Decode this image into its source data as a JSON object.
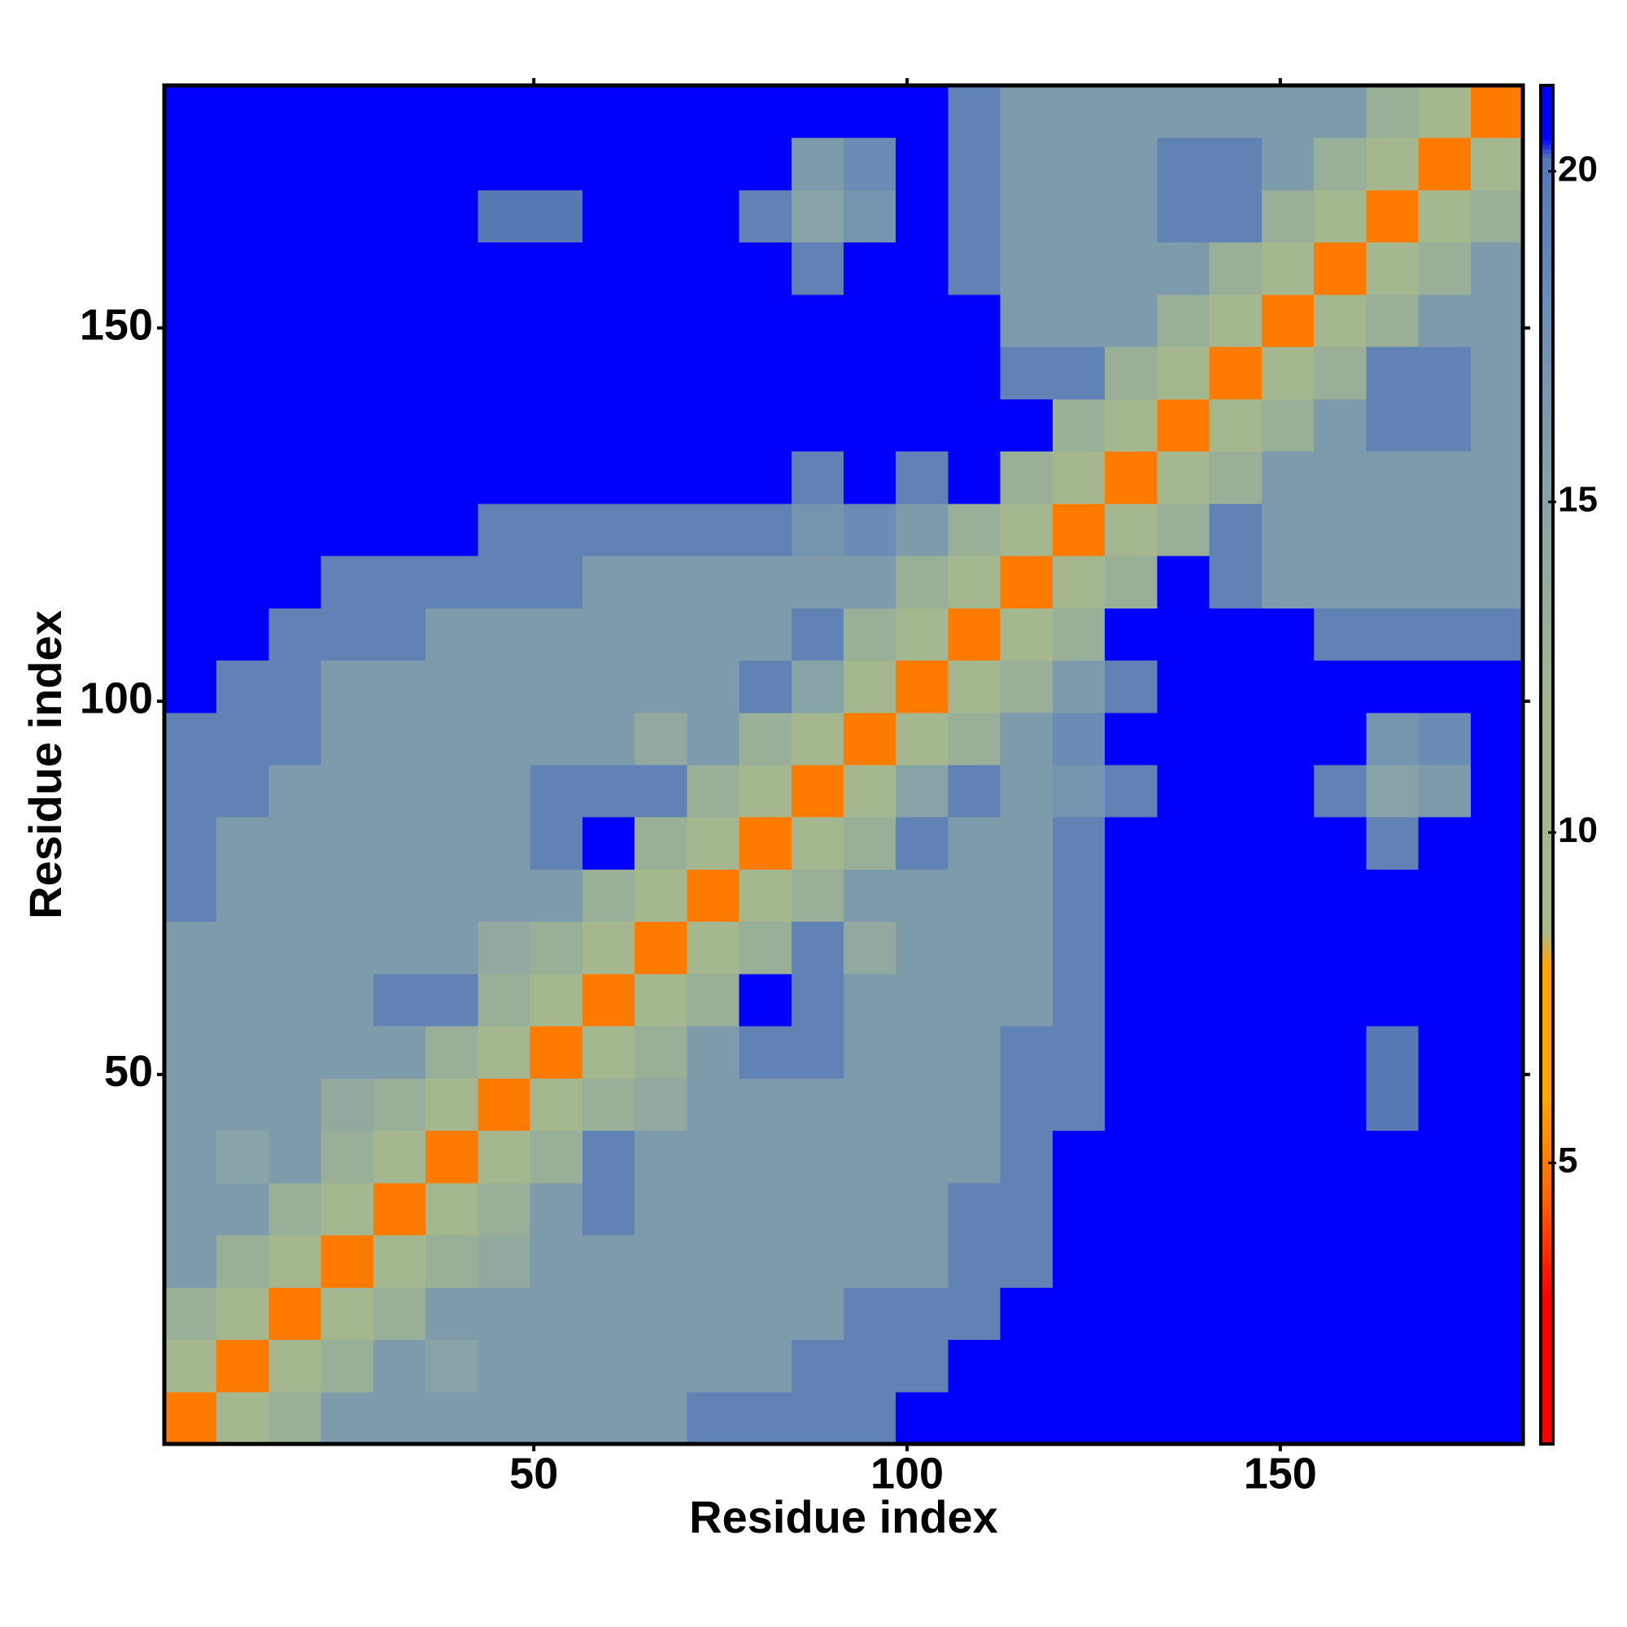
{
  "chart_data": {
    "type": "heatmap",
    "x_label": "Residue index",
    "y_label": "Residue index",
    "xlim": [
      0.5,
      182.5
    ],
    "ylim": [
      0.5,
      182.5
    ],
    "xticks": [
      50,
      100,
      150
    ],
    "yticks": [
      50,
      100,
      150
    ],
    "xbins": [
      0.5,
      7.5,
      14.5,
      21.5,
      28.5,
      35.5,
      42.5,
      49.5,
      56.5,
      63.5,
      70.5,
      77.5,
      84.5,
      91.5,
      98.5,
      105.5,
      112.5,
      119.5,
      126.5,
      133.5,
      140.5,
      147.5,
      154.5,
      161.5,
      168.5,
      175.5,
      182.5
    ],
    "ybins": [
      0.5,
      7.5,
      14.5,
      21.5,
      28.5,
      35.5,
      42.5,
      49.5,
      56.5,
      63.5,
      70.5,
      77.5,
      84.5,
      91.5,
      98.5,
      105.5,
      112.5,
      119.5,
      126.5,
      133.5,
      140.5,
      147.5,
      154.5,
      161.5,
      168.5,
      175.5,
      182.5
    ],
    "z": [
      [
        5,
        10,
        13,
        16,
        16,
        16,
        16,
        16,
        16,
        16,
        19,
        19,
        19,
        19,
        21,
        21,
        21,
        21,
        21,
        21,
        21,
        21,
        21,
        21,
        21,
        21
      ],
      [
        10,
        5,
        10,
        13,
        16,
        15,
        16,
        16,
        16,
        16,
        16,
        16,
        19,
        19,
        19,
        21,
        21,
        21,
        21,
        21,
        21,
        21,
        21,
        21,
        21,
        21
      ],
      [
        13,
        10,
        5,
        10,
        13,
        16,
        16,
        16,
        16,
        16,
        16,
        16,
        16,
        19,
        19,
        19,
        21,
        21,
        21,
        21,
        21,
        21,
        21,
        21,
        21,
        21
      ],
      [
        16,
        13,
        10,
        5,
        10,
        13,
        14,
        16,
        16,
        16,
        16,
        16,
        16,
        16,
        16,
        19,
        19,
        21,
        21,
        21,
        21,
        21,
        21,
        21,
        21,
        21
      ],
      [
        16,
        16,
        13,
        10,
        5,
        10,
        13,
        16,
        19,
        16,
        16,
        16,
        16,
        16,
        16,
        19,
        19,
        21,
        21,
        21,
        21,
        21,
        21,
        21,
        21,
        21
      ],
      [
        16,
        15,
        16,
        13,
        10,
        5,
        10,
        13,
        19,
        16,
        16,
        16,
        16,
        16,
        16,
        16,
        19,
        21,
        21,
        21,
        21,
        21,
        21,
        21,
        21,
        21
      ],
      [
        16,
        16,
        16,
        14,
        13,
        10,
        5,
        10,
        13,
        14,
        16,
        16,
        16,
        16,
        16,
        16,
        19,
        19,
        21,
        21,
        21,
        21,
        21,
        20,
        21,
        21
      ],
      [
        16,
        16,
        16,
        16,
        16,
        13,
        10,
        5,
        10,
        13,
        16,
        19,
        19,
        16,
        16,
        16,
        19,
        19,
        21,
        21,
        21,
        21,
        21,
        20,
        21,
        21
      ],
      [
        16,
        16,
        16,
        16,
        19,
        19,
        13,
        10,
        5,
        10,
        13,
        21,
        19,
        16,
        16,
        16,
        16,
        19,
        21,
        21,
        21,
        21,
        21,
        21,
        21,
        21
      ],
      [
        16,
        16,
        16,
        16,
        16,
        16,
        14,
        13,
        10,
        5,
        10,
        13,
        19,
        14,
        16,
        16,
        16,
        19,
        21,
        21,
        21,
        21,
        21,
        21,
        21,
        21
      ],
      [
        19,
        16,
        16,
        16,
        16,
        16,
        16,
        16,
        13,
        10,
        5,
        10,
        13,
        16,
        16,
        16,
        16,
        19,
        21,
        21,
        21,
        21,
        21,
        21,
        21,
        21
      ],
      [
        19,
        16,
        16,
        16,
        16,
        16,
        16,
        19,
        21,
        13,
        10,
        5,
        10,
        13,
        19,
        16,
        16,
        19,
        21,
        21,
        21,
        21,
        21,
        19,
        21,
        21
      ],
      [
        19,
        19,
        16,
        16,
        16,
        16,
        16,
        19,
        19,
        19,
        13,
        10,
        5,
        10,
        15,
        19,
        16,
        17,
        19,
        21,
        21,
        21,
        19,
        15,
        16,
        21
      ],
      [
        19,
        19,
        19,
        16,
        16,
        16,
        16,
        16,
        16,
        14,
        16,
        13,
        10,
        5,
        10,
        13,
        16,
        18,
        21,
        21,
        21,
        21,
        21,
        17,
        18,
        21
      ],
      [
        21,
        19,
        19,
        16,
        16,
        16,
        16,
        16,
        16,
        16,
        16,
        19,
        15,
        10,
        5,
        10,
        13,
        16,
        19,
        21,
        21,
        21,
        21,
        21,
        21,
        21
      ],
      [
        21,
        21,
        19,
        19,
        19,
        16,
        16,
        16,
        16,
        16,
        16,
        16,
        19,
        13,
        10,
        5,
        10,
        13,
        21,
        21,
        21,
        21,
        19,
        19,
        19,
        19
      ],
      [
        21,
        21,
        21,
        19,
        19,
        19,
        19,
        19,
        16,
        16,
        16,
        16,
        16,
        16,
        13,
        10,
        5,
        10,
        13,
        21,
        19,
        16,
        16,
        16,
        16,
        16
      ],
      [
        21,
        21,
        21,
        21,
        21,
        21,
        19,
        19,
        19,
        19,
        19,
        19,
        17,
        18,
        16,
        13,
        10,
        5,
        10,
        13,
        19,
        16,
        16,
        16,
        16,
        16
      ],
      [
        21,
        21,
        21,
        21,
        21,
        21,
        21,
        21,
        21,
        21,
        21,
        21,
        19,
        21,
        19,
        21,
        13,
        10,
        5,
        10,
        13,
        16,
        16,
        16,
        16,
        16
      ],
      [
        21,
        21,
        21,
        21,
        21,
        21,
        21,
        21,
        21,
        21,
        21,
        21,
        21,
        21,
        21,
        21,
        21,
        13,
        10,
        5,
        10,
        13,
        16,
        19,
        19,
        16
      ],
      [
        21,
        21,
        21,
        21,
        21,
        21,
        21,
        21,
        21,
        21,
        21,
        21,
        21,
        21,
        21,
        21,
        19,
        19,
        13,
        10,
        5,
        10,
        13,
        19,
        19,
        16
      ],
      [
        21,
        21,
        21,
        21,
        21,
        21,
        21,
        21,
        21,
        21,
        21,
        21,
        21,
        21,
        21,
        21,
        16,
        16,
        16,
        13,
        10,
        5,
        10,
        13,
        16,
        16
      ],
      [
        21,
        21,
        21,
        21,
        21,
        21,
        21,
        21,
        21,
        21,
        21,
        21,
        19,
        21,
        21,
        19,
        16,
        16,
        16,
        16,
        13,
        10,
        5,
        10,
        13,
        16
      ],
      [
        21,
        21,
        21,
        21,
        21,
        21,
        20,
        20,
        21,
        21,
        21,
        19,
        15,
        17,
        21,
        19,
        16,
        16,
        16,
        19,
        19,
        13,
        10,
        5,
        10,
        13
      ],
      [
        21,
        21,
        21,
        21,
        21,
        21,
        21,
        21,
        21,
        21,
        21,
        21,
        16,
        18,
        21,
        19,
        16,
        16,
        16,
        19,
        19,
        16,
        13,
        10,
        5,
        10
      ],
      [
        21,
        21,
        21,
        21,
        21,
        21,
        21,
        21,
        21,
        21,
        21,
        21,
        21,
        21,
        21,
        19,
        16,
        16,
        16,
        16,
        16,
        16,
        16,
        13,
        10,
        5
      ]
    ],
    "zlim": [
      0.75,
      21.3
    ],
    "zticks": [
      5,
      10,
      15,
      20
    ],
    "colorscale": [
      [
        0.75,
        "#ff0000"
      ],
      [
        3,
        "#ff0000"
      ],
      [
        4.5,
        "#ff6600"
      ],
      [
        6,
        "#ffa500"
      ],
      [
        8,
        "#ffa500"
      ],
      [
        8.5,
        "#a8b98c"
      ],
      [
        12,
        "#a2b591"
      ],
      [
        15,
        "#88a3a6"
      ],
      [
        18,
        "#6b8cb5"
      ],
      [
        20.2,
        "#5577b4"
      ],
      [
        20.5,
        "#0000ff"
      ],
      [
        21.3,
        "#0000ff"
      ]
    ]
  }
}
